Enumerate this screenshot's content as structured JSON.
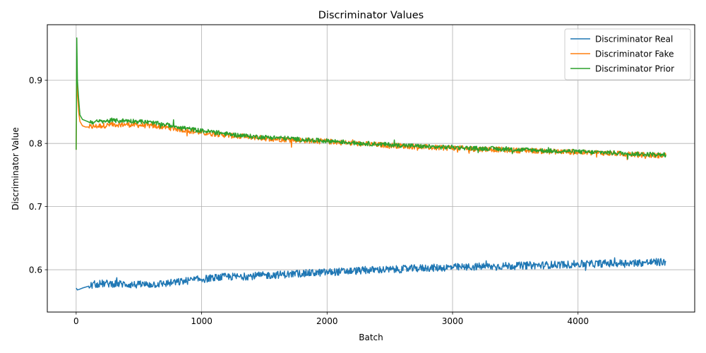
{
  "chart_data": {
    "type": "line",
    "title": "Discriminator Values",
    "xlabel": "Batch",
    "ylabel": "Discriminator Value",
    "xlim": [
      -230,
      4930
    ],
    "ylim": [
      0.533,
      0.988
    ],
    "xticks": [
      0,
      1000,
      2000,
      3000,
      4000
    ],
    "yticks": [
      0.6,
      0.7,
      0.8,
      0.9
    ],
    "grid": true,
    "legend_position": "top-right",
    "series": [
      {
        "name": "Discriminator Real",
        "color": "#1f77b4",
        "x": [
          0,
          10,
          25,
          50,
          100,
          150,
          200,
          300,
          400,
          500,
          600,
          700,
          800,
          900,
          1000,
          1100,
          1200,
          1300,
          1400,
          1500,
          1600,
          1700,
          1800,
          1900,
          2000,
          2100,
          2200,
          2300,
          2400,
          2500,
          2600,
          2700,
          2800,
          2900,
          3000,
          3100,
          3200,
          3300,
          3400,
          3500,
          3600,
          3700,
          3800,
          3900,
          4000,
          4100,
          4200,
          4300,
          4400,
          4500,
          4600,
          4700
        ],
        "y": [
          0.571,
          0.568,
          0.569,
          0.571,
          0.574,
          0.577,
          0.578,
          0.578,
          0.577,
          0.576,
          0.577,
          0.578,
          0.58,
          0.583,
          0.585,
          0.587,
          0.589,
          0.589,
          0.59,
          0.591,
          0.592,
          0.593,
          0.594,
          0.595,
          0.596,
          0.597,
          0.598,
          0.599,
          0.6,
          0.6,
          0.601,
          0.602,
          0.603,
          0.603,
          0.604,
          0.604,
          0.605,
          0.605,
          0.606,
          0.606,
          0.607,
          0.607,
          0.608,
          0.608,
          0.609,
          0.609,
          0.61,
          0.61,
          0.611,
          0.611,
          0.612,
          0.612
        ]
      },
      {
        "name": "Discriminator Fake",
        "color": "#ff7f0e",
        "x": [
          0,
          5,
          10,
          20,
          30,
          50,
          75,
          100,
          150,
          200,
          300,
          400,
          500,
          600,
          700,
          800,
          900,
          1000,
          1100,
          1200,
          1300,
          1400,
          1500,
          1600,
          1700,
          1800,
          1900,
          2000,
          2100,
          2200,
          2300,
          2400,
          2500,
          2600,
          2700,
          2800,
          2900,
          3000,
          3100,
          3200,
          3300,
          3400,
          3500,
          3600,
          3700,
          3800,
          3900,
          4000,
          4100,
          4200,
          4300,
          4400,
          4500,
          4600,
          4700
        ],
        "y": [
          0.79,
          0.93,
          0.88,
          0.85,
          0.835,
          0.828,
          0.826,
          0.826,
          0.827,
          0.828,
          0.83,
          0.83,
          0.829,
          0.828,
          0.826,
          0.823,
          0.82,
          0.817,
          0.815,
          0.813,
          0.811,
          0.81,
          0.808,
          0.807,
          0.806,
          0.805,
          0.804,
          0.803,
          0.802,
          0.8,
          0.799,
          0.798,
          0.797,
          0.796,
          0.795,
          0.794,
          0.793,
          0.793,
          0.792,
          0.791,
          0.791,
          0.79,
          0.789,
          0.789,
          0.788,
          0.787,
          0.787,
          0.786,
          0.785,
          0.785,
          0.784,
          0.783,
          0.782,
          0.781,
          0.781
        ]
      },
      {
        "name": "Discriminator Prior",
        "color": "#2ca02c",
        "x": [
          0,
          5,
          10,
          20,
          30,
          50,
          75,
          100,
          150,
          200,
          300,
          400,
          500,
          600,
          700,
          800,
          900,
          1000,
          1100,
          1200,
          1300,
          1400,
          1500,
          1600,
          1700,
          1800,
          1900,
          2000,
          2100,
          2200,
          2300,
          2400,
          2500,
          2600,
          2700,
          2800,
          2900,
          3000,
          3100,
          3200,
          3300,
          3400,
          3500,
          3600,
          3700,
          3800,
          3900,
          4000,
          4100,
          4200,
          4300,
          4400,
          4500,
          4600,
          4700
        ],
        "y": [
          0.79,
          0.967,
          0.9,
          0.87,
          0.845,
          0.838,
          0.836,
          0.834,
          0.834,
          0.835,
          0.836,
          0.836,
          0.835,
          0.833,
          0.83,
          0.827,
          0.823,
          0.82,
          0.818,
          0.815,
          0.813,
          0.811,
          0.81,
          0.809,
          0.808,
          0.806,
          0.805,
          0.804,
          0.803,
          0.801,
          0.8,
          0.799,
          0.798,
          0.797,
          0.796,
          0.795,
          0.794,
          0.794,
          0.793,
          0.792,
          0.792,
          0.791,
          0.79,
          0.79,
          0.789,
          0.788,
          0.788,
          0.787,
          0.786,
          0.786,
          0.785,
          0.784,
          0.783,
          0.783,
          0.782
        ]
      }
    ]
  }
}
